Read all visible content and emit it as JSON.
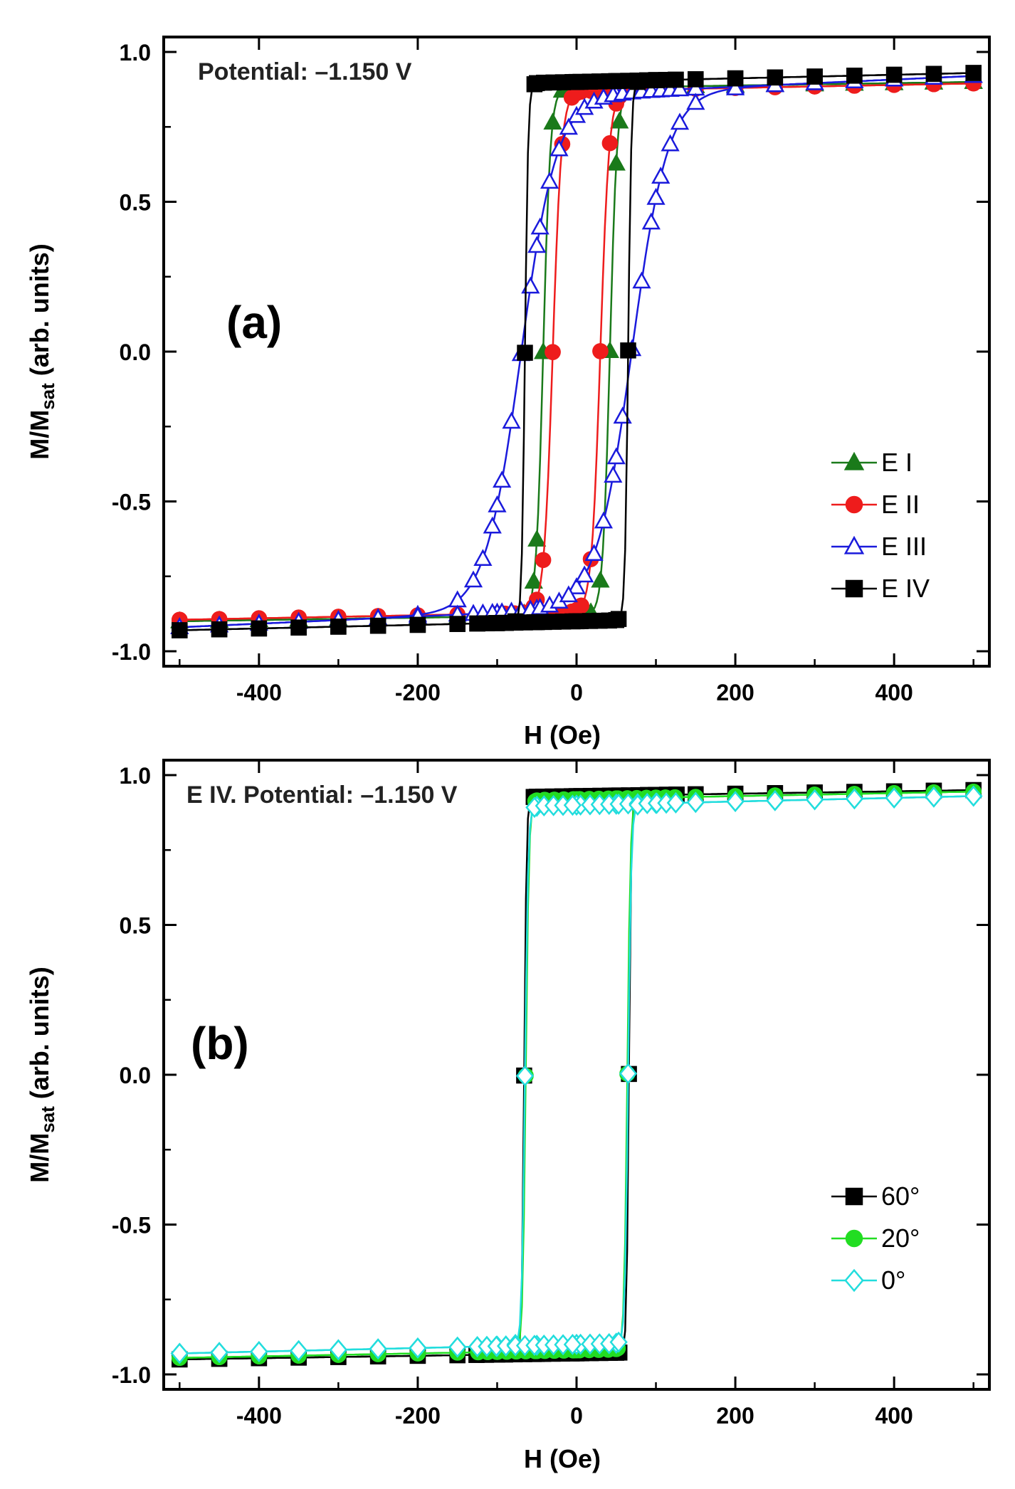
{
  "chart_data": [
    {
      "type": "line",
      "panel_label": "(a)",
      "annotation": "Potential: –1.150 V",
      "xlabel": "H (Oe)",
      "ylabel": "M/M",
      "ylabel_sub": "sat",
      "ylabel_tail": " (arb. units)",
      "xlim": [
        -520,
        520
      ],
      "ylim": [
        -1.05,
        1.05
      ],
      "xticks": [
        -400,
        -200,
        0,
        200,
        400
      ],
      "xtick_labels": [
        "-400",
        "-200",
        "0",
        "200",
        "400"
      ],
      "yticks": [
        -1.0,
        -0.5,
        0.0,
        0.5,
        1.0
      ],
      "ytick_labels": [
        "-1.0",
        "-0.5",
        "0.0",
        "0.5",
        "1.0"
      ],
      "legend_position": "bottom-right",
      "series": [
        {
          "name": "E I",
          "color": "#1a7a1a",
          "marker": "triangle",
          "filled": true,
          "Hc": 42,
          "width": 9,
          "Ms": 0.88,
          "chi": 4e-05
        },
        {
          "name": "E II",
          "color": "#ee1c1c",
          "marker": "circle",
          "filled": true,
          "Hc": 30,
          "width": 11,
          "Ms": 0.87,
          "chi": 5e-05
        },
        {
          "name": "E III",
          "color": "#1a1adc",
          "marker": "triangle",
          "filled": false,
          "Hc": 70,
          "width": 45,
          "Ms": 0.86,
          "chi": 0.00012
        },
        {
          "name": "E IV",
          "color": "#000000",
          "marker": "square",
          "filled": true,
          "Hc": 65,
          "width": 4,
          "Ms": 0.9,
          "chi": 6e-05
        }
      ]
    },
    {
      "type": "line",
      "panel_label": "(b)",
      "annotation": "E IV. Potential: –1.150 V",
      "xlabel": "H (Oe)",
      "ylabel": "M/M",
      "ylabel_sub": "sat",
      "ylabel_tail": " (arb. units)",
      "xlim": [
        -520,
        520
      ],
      "ylim": [
        -1.05,
        1.05
      ],
      "xticks": [
        -400,
        -200,
        0,
        200,
        400
      ],
      "xtick_labels": [
        "-400",
        "-200",
        "0",
        "200",
        "400"
      ],
      "yticks": [
        -1.0,
        -0.5,
        0.0,
        0.5,
        1.0
      ],
      "ytick_labels": [
        "-1.0",
        "-0.5",
        "0.0",
        "0.5",
        "1.0"
      ],
      "legend_position": "bottom-right",
      "series": [
        {
          "name": "60°",
          "color": "#000000",
          "marker": "square",
          "filled": true,
          "Hc": 66,
          "width": 3,
          "Ms": 0.93,
          "chi": 4e-05
        },
        {
          "name": "20°",
          "color": "#22dd22",
          "marker": "circle",
          "filled": true,
          "Hc": 64,
          "width": 4,
          "Ms": 0.92,
          "chi": 5e-05
        },
        {
          "name": "0°",
          "color": "#22dddd",
          "marker": "diamond",
          "filled": false,
          "Hc": 65,
          "width": 4,
          "Ms": 0.9,
          "chi": 6e-05
        }
      ]
    }
  ]
}
